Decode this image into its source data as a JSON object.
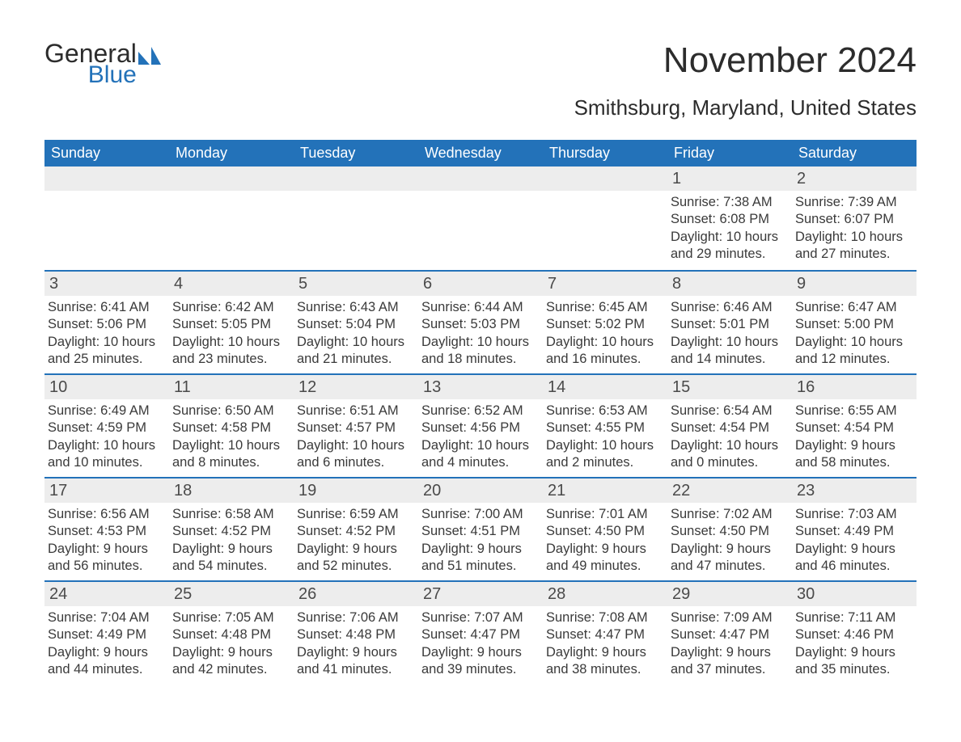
{
  "logo": {
    "text_top": "General",
    "text_bottom": "Blue",
    "brand_color": "#2372b9",
    "text_color": "#2c2c2c"
  },
  "title": "November 2024",
  "location": "Smithsburg, Maryland, United States",
  "colors": {
    "header_bg": "#2372b9",
    "header_text": "#ffffff",
    "row_divider": "#2372b9",
    "daynum_bg": "#ededed",
    "body_text": "#3a3a3a",
    "page_bg": "#ffffff"
  },
  "day_names": [
    "Sunday",
    "Monday",
    "Tuesday",
    "Wednesday",
    "Thursday",
    "Friday",
    "Saturday"
  ],
  "weeks": [
    [
      null,
      null,
      null,
      null,
      null,
      {
        "n": "1",
        "sunrise": "Sunrise: 7:38 AM",
        "sunset": "Sunset: 6:08 PM",
        "day1": "Daylight: 10 hours",
        "day2": "and 29 minutes."
      },
      {
        "n": "2",
        "sunrise": "Sunrise: 7:39 AM",
        "sunset": "Sunset: 6:07 PM",
        "day1": "Daylight: 10 hours",
        "day2": "and 27 minutes."
      }
    ],
    [
      {
        "n": "3",
        "sunrise": "Sunrise: 6:41 AM",
        "sunset": "Sunset: 5:06 PM",
        "day1": "Daylight: 10 hours",
        "day2": "and 25 minutes."
      },
      {
        "n": "4",
        "sunrise": "Sunrise: 6:42 AM",
        "sunset": "Sunset: 5:05 PM",
        "day1": "Daylight: 10 hours",
        "day2": "and 23 minutes."
      },
      {
        "n": "5",
        "sunrise": "Sunrise: 6:43 AM",
        "sunset": "Sunset: 5:04 PM",
        "day1": "Daylight: 10 hours",
        "day2": "and 21 minutes."
      },
      {
        "n": "6",
        "sunrise": "Sunrise: 6:44 AM",
        "sunset": "Sunset: 5:03 PM",
        "day1": "Daylight: 10 hours",
        "day2": "and 18 minutes."
      },
      {
        "n": "7",
        "sunrise": "Sunrise: 6:45 AM",
        "sunset": "Sunset: 5:02 PM",
        "day1": "Daylight: 10 hours",
        "day2": "and 16 minutes."
      },
      {
        "n": "8",
        "sunrise": "Sunrise: 6:46 AM",
        "sunset": "Sunset: 5:01 PM",
        "day1": "Daylight: 10 hours",
        "day2": "and 14 minutes."
      },
      {
        "n": "9",
        "sunrise": "Sunrise: 6:47 AM",
        "sunset": "Sunset: 5:00 PM",
        "day1": "Daylight: 10 hours",
        "day2": "and 12 minutes."
      }
    ],
    [
      {
        "n": "10",
        "sunrise": "Sunrise: 6:49 AM",
        "sunset": "Sunset: 4:59 PM",
        "day1": "Daylight: 10 hours",
        "day2": "and 10 minutes."
      },
      {
        "n": "11",
        "sunrise": "Sunrise: 6:50 AM",
        "sunset": "Sunset: 4:58 PM",
        "day1": "Daylight: 10 hours",
        "day2": "and 8 minutes."
      },
      {
        "n": "12",
        "sunrise": "Sunrise: 6:51 AM",
        "sunset": "Sunset: 4:57 PM",
        "day1": "Daylight: 10 hours",
        "day2": "and 6 minutes."
      },
      {
        "n": "13",
        "sunrise": "Sunrise: 6:52 AM",
        "sunset": "Sunset: 4:56 PM",
        "day1": "Daylight: 10 hours",
        "day2": "and 4 minutes."
      },
      {
        "n": "14",
        "sunrise": "Sunrise: 6:53 AM",
        "sunset": "Sunset: 4:55 PM",
        "day1": "Daylight: 10 hours",
        "day2": "and 2 minutes."
      },
      {
        "n": "15",
        "sunrise": "Sunrise: 6:54 AM",
        "sunset": "Sunset: 4:54 PM",
        "day1": "Daylight: 10 hours",
        "day2": "and 0 minutes."
      },
      {
        "n": "16",
        "sunrise": "Sunrise: 6:55 AM",
        "sunset": "Sunset: 4:54 PM",
        "day1": "Daylight: 9 hours",
        "day2": "and 58 minutes."
      }
    ],
    [
      {
        "n": "17",
        "sunrise": "Sunrise: 6:56 AM",
        "sunset": "Sunset: 4:53 PM",
        "day1": "Daylight: 9 hours",
        "day2": "and 56 minutes."
      },
      {
        "n": "18",
        "sunrise": "Sunrise: 6:58 AM",
        "sunset": "Sunset: 4:52 PM",
        "day1": "Daylight: 9 hours",
        "day2": "and 54 minutes."
      },
      {
        "n": "19",
        "sunrise": "Sunrise: 6:59 AM",
        "sunset": "Sunset: 4:52 PM",
        "day1": "Daylight: 9 hours",
        "day2": "and 52 minutes."
      },
      {
        "n": "20",
        "sunrise": "Sunrise: 7:00 AM",
        "sunset": "Sunset: 4:51 PM",
        "day1": "Daylight: 9 hours",
        "day2": "and 51 minutes."
      },
      {
        "n": "21",
        "sunrise": "Sunrise: 7:01 AM",
        "sunset": "Sunset: 4:50 PM",
        "day1": "Daylight: 9 hours",
        "day2": "and 49 minutes."
      },
      {
        "n": "22",
        "sunrise": "Sunrise: 7:02 AM",
        "sunset": "Sunset: 4:50 PM",
        "day1": "Daylight: 9 hours",
        "day2": "and 47 minutes."
      },
      {
        "n": "23",
        "sunrise": "Sunrise: 7:03 AM",
        "sunset": "Sunset: 4:49 PM",
        "day1": "Daylight: 9 hours",
        "day2": "and 46 minutes."
      }
    ],
    [
      {
        "n": "24",
        "sunrise": "Sunrise: 7:04 AM",
        "sunset": "Sunset: 4:49 PM",
        "day1": "Daylight: 9 hours",
        "day2": "and 44 minutes."
      },
      {
        "n": "25",
        "sunrise": "Sunrise: 7:05 AM",
        "sunset": "Sunset: 4:48 PM",
        "day1": "Daylight: 9 hours",
        "day2": "and 42 minutes."
      },
      {
        "n": "26",
        "sunrise": "Sunrise: 7:06 AM",
        "sunset": "Sunset: 4:48 PM",
        "day1": "Daylight: 9 hours",
        "day2": "and 41 minutes."
      },
      {
        "n": "27",
        "sunrise": "Sunrise: 7:07 AM",
        "sunset": "Sunset: 4:47 PM",
        "day1": "Daylight: 9 hours",
        "day2": "and 39 minutes."
      },
      {
        "n": "28",
        "sunrise": "Sunrise: 7:08 AM",
        "sunset": "Sunset: 4:47 PM",
        "day1": "Daylight: 9 hours",
        "day2": "and 38 minutes."
      },
      {
        "n": "29",
        "sunrise": "Sunrise: 7:09 AM",
        "sunset": "Sunset: 4:47 PM",
        "day1": "Daylight: 9 hours",
        "day2": "and 37 minutes."
      },
      {
        "n": "30",
        "sunrise": "Sunrise: 7:11 AM",
        "sunset": "Sunset: 4:46 PM",
        "day1": "Daylight: 9 hours",
        "day2": "and 35 minutes."
      }
    ]
  ]
}
